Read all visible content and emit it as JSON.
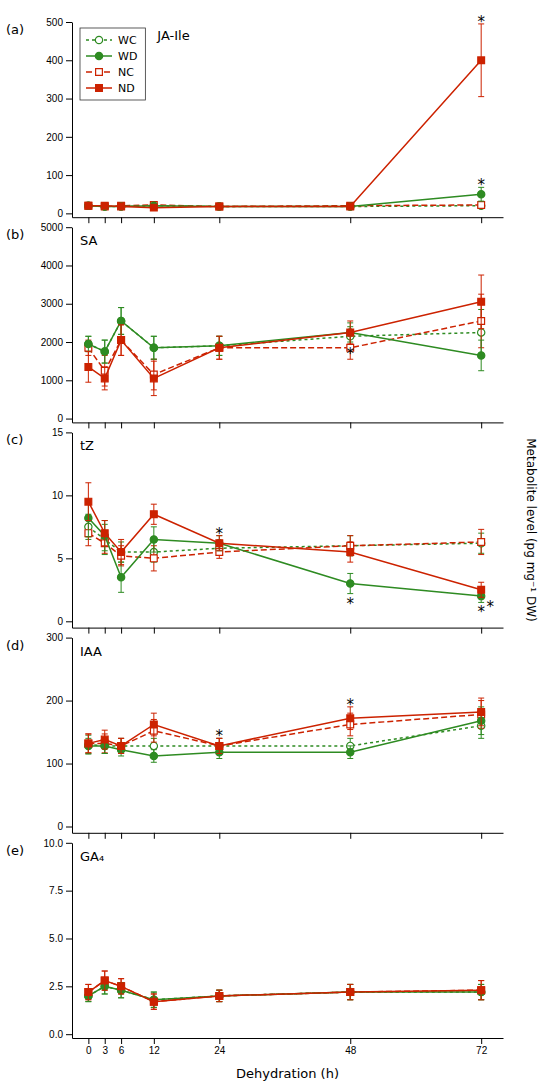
{
  "chart_data": [
    {
      "type": "line",
      "title": "(a)",
      "subtitle": "JA-Ile",
      "x": [
        0,
        3,
        6,
        12,
        24,
        48,
        72
      ],
      "xlim": [
        -3,
        76
      ],
      "xticks": [
        0,
        3,
        6,
        12,
        24,
        48,
        72
      ],
      "ylim": [
        -10,
        500
      ],
      "yticks": [
        0,
        100,
        200,
        300,
        400,
        500
      ],
      "grid": false,
      "tick_labels": "y",
      "legend": "upper left",
      "series": [
        {
          "name": "WC",
          "color": "#2E8B22",
          "line_style": "dotted",
          "marker": "circle-open",
          "values": [
            20,
            18,
            18,
            20,
            18,
            18,
            20
          ],
          "yerr": [
            4,
            3,
            3,
            4,
            3,
            3,
            5
          ]
        },
        {
          "name": "WD",
          "color": "#2E8B22",
          "line_style": "solid",
          "marker": "circle",
          "values": [
            20,
            18,
            18,
            20,
            18,
            18,
            50
          ],
          "yerr": [
            4,
            3,
            3,
            4,
            3,
            3,
            18
          ]
        },
        {
          "name": "NC",
          "color": "#CC2200",
          "line_style": "dashed",
          "marker": "square-open",
          "values": [
            20,
            18,
            20,
            22,
            18,
            20,
            22
          ],
          "yerr": [
            4,
            3,
            3,
            4,
            3,
            3,
            5
          ]
        },
        {
          "name": "ND",
          "color": "#CC2200",
          "line_style": "solid",
          "marker": "square",
          "values": [
            20,
            20,
            18,
            15,
            18,
            18,
            400
          ],
          "yerr": [
            4,
            3,
            3,
            4,
            3,
            3,
            95
          ]
        }
      ],
      "annotations": [
        {
          "text": "*",
          "x": 72,
          "series": "ND",
          "position": "above"
        },
        {
          "text": "*",
          "x": 72,
          "series": "WD",
          "position": "above"
        }
      ]
    },
    {
      "type": "line",
      "title": "(b)",
      "subtitle": "SA",
      "x": [
        0,
        3,
        6,
        12,
        24,
        48,
        72
      ],
      "xlim": [
        -3,
        76
      ],
      "xticks": [
        0,
        3,
        6,
        12,
        24,
        48,
        72
      ],
      "ylim": [
        -100,
        5000
      ],
      "yticks": [
        0,
        1000,
        2000,
        3000,
        4000,
        5000
      ],
      "grid": false,
      "tick_labels": "y",
      "series": [
        {
          "name": "WC",
          "color": "#2E8B22",
          "line_style": "dotted",
          "marker": "circle-open",
          "values": [
            1950,
            1750,
            2550,
            1850,
            1900,
            2150,
            2250
          ],
          "yerr": [
            200,
            300,
            350,
            300,
            250,
            250,
            600
          ]
        },
        {
          "name": "WD",
          "color": "#2E8B22",
          "line_style": "solid",
          "marker": "circle",
          "values": [
            1950,
            1750,
            2550,
            1850,
            1900,
            2250,
            1650
          ],
          "yerr": [
            200,
            300,
            350,
            300,
            250,
            250,
            400
          ]
        },
        {
          "name": "NC",
          "color": "#CC2200",
          "line_style": "dashed",
          "marker": "square-open",
          "values": [
            1850,
            1250,
            2050,
            1150,
            1850,
            1850,
            2550
          ],
          "yerr": [
            200,
            400,
            400,
            400,
            300,
            300,
            700
          ]
        },
        {
          "name": "ND",
          "color": "#CC2200",
          "line_style": "solid",
          "marker": "square",
          "values": [
            1350,
            1050,
            2050,
            1050,
            1850,
            2250,
            3050
          ],
          "yerr": [
            400,
            300,
            400,
            450,
            300,
            300,
            700
          ]
        }
      ],
      "annotations": [
        {
          "text": "*",
          "x": 48,
          "series": "ND",
          "position": "below"
        }
      ]
    },
    {
      "type": "line",
      "title": "(c)",
      "subtitle": "tZ",
      "ylabel": "Metabolite level (pg mg⁻¹ DW)",
      "x": [
        0,
        3,
        6,
        12,
        24,
        48,
        72
      ],
      "xlim": [
        -3,
        76
      ],
      "xticks": [
        0,
        3,
        6,
        12,
        24,
        48,
        72
      ],
      "ylim": [
        -0.5,
        15
      ],
      "yticks": [
        0,
        5,
        10,
        15
      ],
      "grid": false,
      "tick_labels": "y",
      "series": [
        {
          "name": "WC",
          "color": "#2E8B22",
          "line_style": "dotted",
          "marker": "circle-open",
          "values": [
            7.5,
            6.5,
            5.5,
            5.5,
            5.8,
            6.0,
            6.2
          ],
          "yerr": [
            1.0,
            1.2,
            0.8,
            0.8,
            0.5,
            0.8,
            0.8
          ]
        },
        {
          "name": "WD",
          "color": "#2E8B22",
          "line_style": "solid",
          "marker": "circle",
          "values": [
            8.2,
            6.8,
            3.5,
            6.5,
            6.2,
            3.0,
            2.0
          ],
          "yerr": [
            1.5,
            1.2,
            1.2,
            1.0,
            0.6,
            0.8,
            0.5
          ]
        },
        {
          "name": "NC",
          "color": "#CC2200",
          "line_style": "dashed",
          "marker": "square-open",
          "values": [
            7.0,
            6.2,
            5.2,
            5.0,
            5.5,
            6.0,
            6.3
          ],
          "yerr": [
            1.0,
            0.8,
            0.8,
            1.0,
            0.5,
            0.8,
            1.0
          ]
        },
        {
          "name": "ND",
          "color": "#CC2200",
          "line_style": "solid",
          "marker": "square",
          "values": [
            9.5,
            7.0,
            5.5,
            8.5,
            6.2,
            5.5,
            2.5
          ],
          "yerr": [
            1.5,
            1.0,
            1.0,
            0.8,
            0.6,
            0.8,
            0.6
          ]
        }
      ],
      "annotations": [
        {
          "text": "*",
          "x": 24,
          "series": "ND",
          "position": "above"
        },
        {
          "text": "*",
          "x": 48,
          "series": "WD",
          "position": "below"
        },
        {
          "text": "*",
          "x": 72,
          "series": "WD",
          "position": "below"
        },
        {
          "text": "*",
          "x": 72,
          "series": "ND",
          "position": "below"
        }
      ]
    },
    {
      "type": "line",
      "title": "(d)",
      "subtitle": "IAA",
      "x": [
        0,
        3,
        6,
        12,
        24,
        48,
        72
      ],
      "xlim": [
        -3,
        76
      ],
      "xticks": [
        0,
        3,
        6,
        12,
        24,
        48,
        72
      ],
      "ylim": [
        -10,
        300
      ],
      "yticks": [
        0,
        100,
        200,
        300
      ],
      "grid": false,
      "tick_labels": "y",
      "series": [
        {
          "name": "WC",
          "color": "#2E8B22",
          "line_style": "dotted",
          "marker": "circle-open",
          "values": [
            130,
            128,
            128,
            128,
            128,
            128,
            160
          ],
          "yerr": [
            15,
            12,
            12,
            12,
            12,
            12,
            20
          ]
        },
        {
          "name": "WD",
          "color": "#2E8B22",
          "line_style": "solid",
          "marker": "circle",
          "values": [
            128,
            128,
            122,
            112,
            118,
            118,
            168
          ],
          "yerr": [
            12,
            12,
            10,
            10,
            10,
            10,
            22
          ]
        },
        {
          "name": "NC",
          "color": "#CC2200",
          "line_style": "dashed",
          "marker": "square-open",
          "values": [
            132,
            132,
            128,
            152,
            128,
            162,
            178
          ],
          "yerr": [
            15,
            15,
            12,
            18,
            12,
            18,
            22
          ]
        },
        {
          "name": "ND",
          "color": "#CC2200",
          "line_style": "solid",
          "marker": "square",
          "values": [
            132,
            138,
            128,
            162,
            128,
            172,
            182
          ],
          "yerr": [
            15,
            15,
            12,
            18,
            12,
            18,
            22
          ]
        }
      ],
      "annotations": [
        {
          "text": "*",
          "x": 24,
          "series": "NC",
          "position": "above"
        },
        {
          "text": "*",
          "x": 48,
          "series": "ND",
          "position": "above"
        }
      ]
    },
    {
      "type": "line",
      "title": "(e)",
      "subtitle": "GA₄",
      "xlabel": "Dehydration (h)",
      "x": [
        0,
        3,
        6,
        12,
        24,
        48,
        72
      ],
      "xlim": [
        -3,
        76
      ],
      "xticks": [
        0,
        3,
        6,
        12,
        24,
        48,
        72
      ],
      "ylim": [
        -0.2,
        10
      ],
      "yticks": [
        {
          "value": 0,
          "label": "0.0"
        },
        2.5,
        {
          "value": 5,
          "label": "5.0"
        },
        7.5,
        {
          "value": 10,
          "label": "10.0"
        }
      ],
      "grid": false,
      "series": [
        {
          "name": "WC",
          "color": "#2E8B22",
          "line_style": "dotted",
          "marker": "circle-open",
          "values": [
            2.0,
            2.5,
            2.3,
            1.8,
            2.0,
            2.2,
            2.2
          ],
          "yerr": [
            0.3,
            0.4,
            0.4,
            0.4,
            0.3,
            0.4,
            0.4
          ]
        },
        {
          "name": "WD",
          "color": "#2E8B22",
          "line_style": "solid",
          "marker": "circle",
          "values": [
            2.0,
            2.5,
            2.3,
            1.8,
            2.0,
            2.2,
            2.2
          ],
          "yerr": [
            0.3,
            0.4,
            0.4,
            0.4,
            0.3,
            0.4,
            0.4
          ]
        },
        {
          "name": "NC",
          "color": "#CC2200",
          "line_style": "dashed",
          "marker": "square-open",
          "values": [
            2.2,
            2.8,
            2.5,
            1.7,
            2.0,
            2.2,
            2.3
          ],
          "yerr": [
            0.4,
            0.5,
            0.4,
            0.4,
            0.3,
            0.4,
            0.5
          ]
        },
        {
          "name": "ND",
          "color": "#CC2200",
          "line_style": "solid",
          "marker": "square",
          "values": [
            2.2,
            2.8,
            2.5,
            1.7,
            2.0,
            2.2,
            2.3
          ],
          "yerr": [
            0.4,
            0.5,
            0.4,
            0.4,
            0.3,
            0.4,
            0.5
          ]
        }
      ],
      "annotations": []
    }
  ]
}
